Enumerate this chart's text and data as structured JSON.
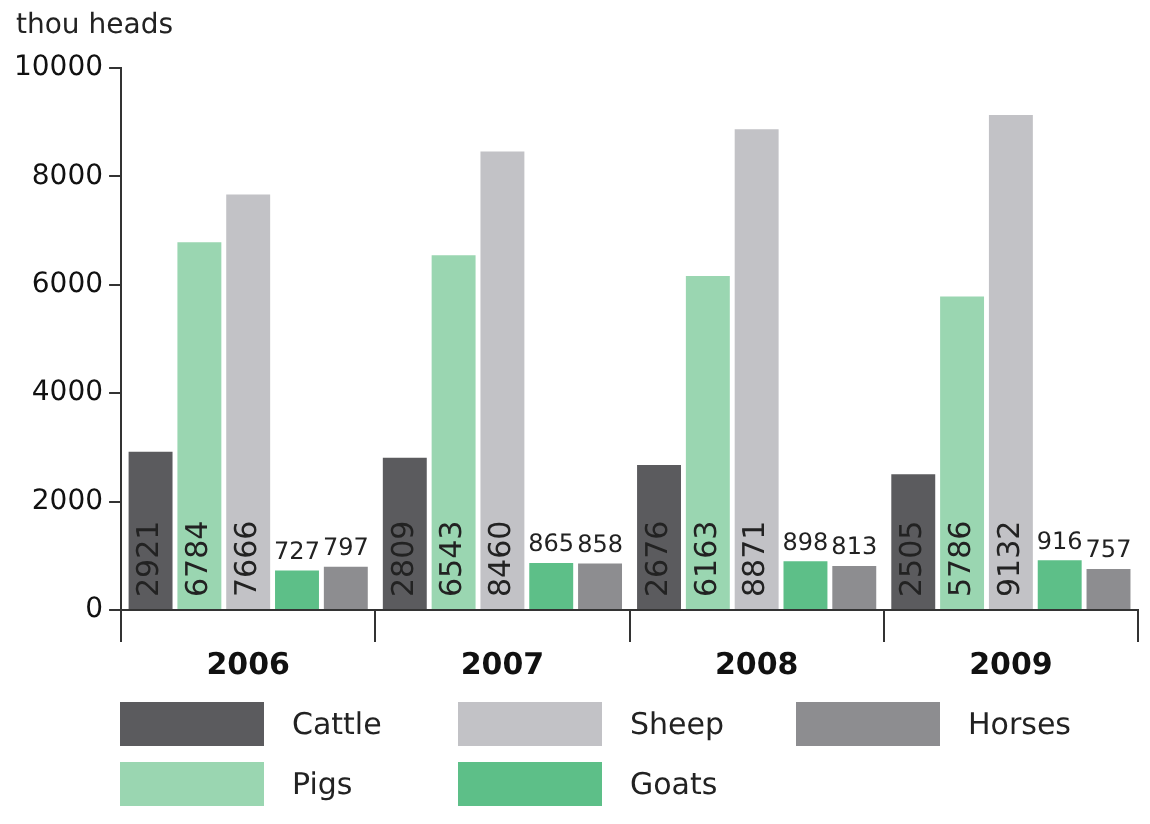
{
  "chart_data": {
    "type": "bar",
    "ylabel": "thou heads",
    "categories": [
      "2006",
      "2007",
      "2008",
      "2009"
    ],
    "series": [
      {
        "name": "Cattle",
        "color": "#5b5b5e",
        "values": [
          2921,
          2809,
          2676,
          2505
        ]
      },
      {
        "name": "Pigs",
        "color": "#9ad6b1",
        "values": [
          6784,
          6543,
          6163,
          5786
        ]
      },
      {
        "name": "Sheep",
        "color": "#c2c2c6",
        "values": [
          7666,
          8460,
          8871,
          9132
        ]
      },
      {
        "name": "Goats",
        "color": "#5dbf88",
        "values": [
          727,
          865,
          898,
          916
        ]
      },
      {
        "name": "Horses",
        "color": "#8d8d90",
        "values": [
          797,
          858,
          813,
          757
        ]
      }
    ],
    "ylim": [
      0,
      10000
    ],
    "yticks": [
      0,
      2000,
      4000,
      6000,
      8000,
      10000
    ],
    "grid": false,
    "legend": "bottom",
    "data_labels": true
  }
}
